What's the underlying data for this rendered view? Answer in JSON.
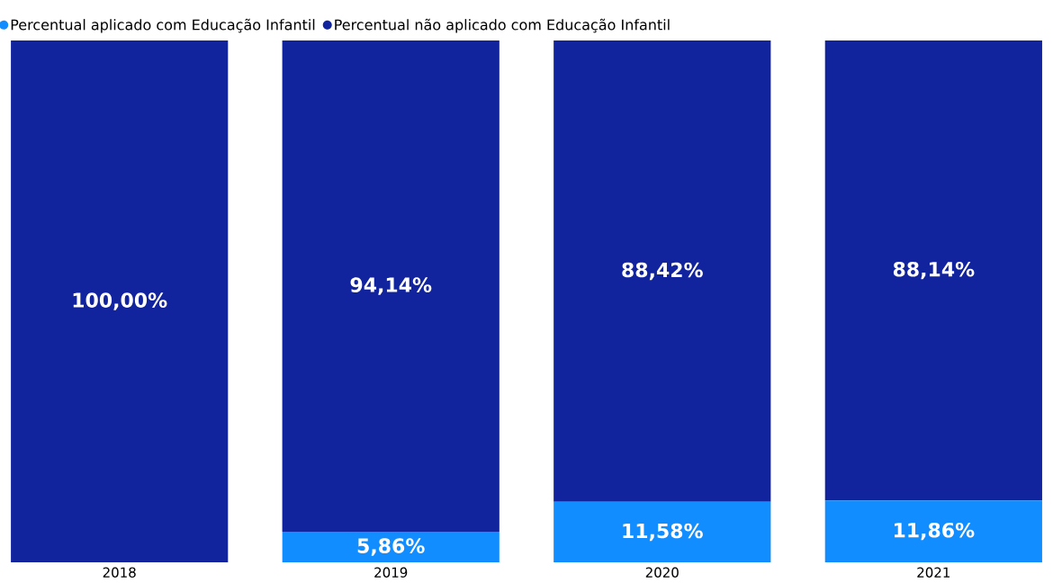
{
  "chart_data": {
    "type": "bar",
    "stacked": true,
    "categories": [
      "2018",
      "2019",
      "2020",
      "2021"
    ],
    "series": [
      {
        "name": "Percentual aplicado com Educação Infantil",
        "color": "#118dff",
        "values": [
          0,
          5.86,
          11.58,
          11.86
        ],
        "value_labels": [
          null,
          "5,86%",
          "11,58%",
          "11,86%"
        ]
      },
      {
        "name": "Percentual não aplicado com Educação Infantil",
        "color": "#12239e",
        "values": [
          100,
          94.14,
          88.42,
          88.14
        ],
        "value_labels": [
          "100,00%",
          "94,14%",
          "88,42%",
          "88,14%"
        ]
      }
    ],
    "tick_labels": "x",
    "legend": "top left",
    "marker": "circle"
  }
}
